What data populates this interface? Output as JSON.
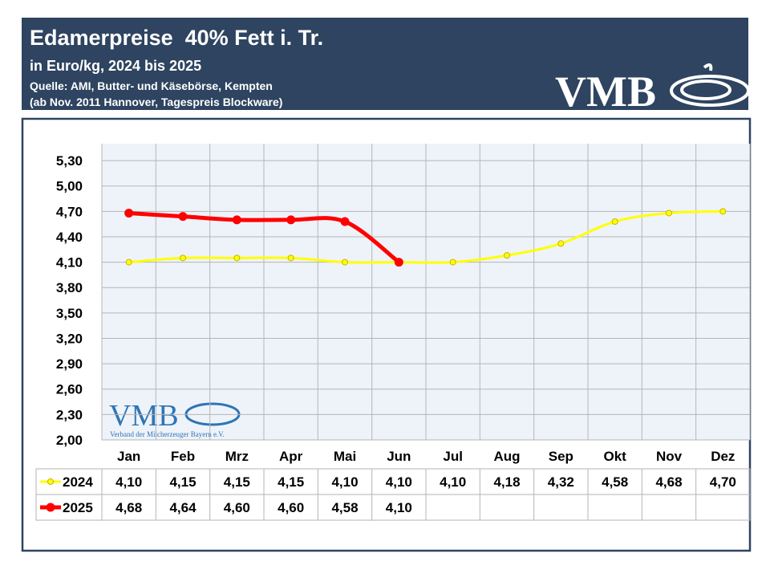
{
  "header": {
    "title": "Edamerpreise  40% Fett i. Tr.",
    "subtitle": "in Euro/kg, 2024 bis 2025",
    "source": "Quelle: AMI, Butter- und Käsebörse, Kempten",
    "note": "(ab Nov. 2011 Hannover, Tagespreis Blockware)",
    "logo": "VMB"
  },
  "chart_data": {
    "type": "line",
    "categories": [
      "Jan",
      "Feb",
      "Mrz",
      "Apr",
      "Mai",
      "Jun",
      "Jul",
      "Aug",
      "Sep",
      "Okt",
      "Nov",
      "Dez"
    ],
    "series": [
      {
        "name": "2024",
        "color": "#ffff00",
        "marker_edge": "#c8b400",
        "values": [
          4.1,
          4.15,
          4.15,
          4.15,
          4.1,
          4.1,
          4.1,
          4.18,
          4.32,
          4.58,
          4.68,
          4.7
        ],
        "value_labels": [
          "4,10",
          "4,15",
          "4,15",
          "4,15",
          "4,10",
          "4,10",
          "4,10",
          "4,18",
          "4,32",
          "4,58",
          "4,68",
          "4,70"
        ]
      },
      {
        "name": "2025",
        "color": "#ff0000",
        "marker_edge": "#ff0000",
        "values": [
          4.68,
          4.64,
          4.6,
          4.6,
          4.58,
          4.1,
          null,
          null,
          null,
          null,
          null,
          null
        ],
        "value_labels": [
          "4,68",
          "4,64",
          "4,60",
          "4,60",
          "4,58",
          "4,10",
          null,
          null,
          null,
          null,
          null,
          null
        ]
      }
    ],
    "ylim": [
      2.0,
      5.5
    ],
    "yticks": [
      {
        "value": 2.0,
        "label": "2,00"
      },
      {
        "value": 2.3,
        "label": "2,30"
      },
      {
        "value": 2.6,
        "label": "2,60"
      },
      {
        "value": 2.9,
        "label": "2,90"
      },
      {
        "value": 3.2,
        "label": "3,20"
      },
      {
        "value": 3.5,
        "label": "3,50"
      },
      {
        "value": 3.8,
        "label": "3,80"
      },
      {
        "value": 4.1,
        "label": "4,10"
      },
      {
        "value": 4.4,
        "label": "4,40"
      },
      {
        "value": 4.7,
        "label": "4,70"
      },
      {
        "value": 5.0,
        "label": "5,00"
      },
      {
        "value": 5.3,
        "label": "5,30"
      }
    ],
    "grid": true,
    "smooth": true,
    "watermark": {
      "text": "VMB",
      "caption": "Verband der Milcherzeuger Bayern e.V."
    }
  }
}
